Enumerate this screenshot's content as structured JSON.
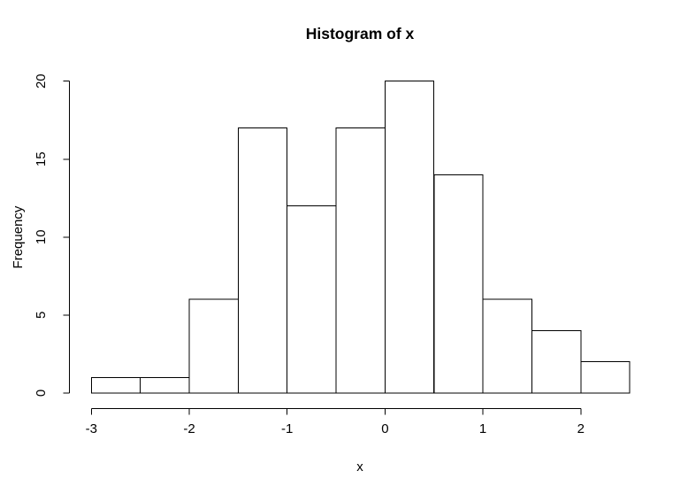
{
  "chart_data": {
    "type": "bar",
    "subtype": "histogram",
    "title": "Histogram of x",
    "xlabel": "x",
    "ylabel": "Frequency",
    "bin_breaks": [
      -3,
      -2.5,
      -2,
      -1.5,
      -1,
      -0.5,
      0,
      0.5,
      1,
      1.5,
      2,
      2.5
    ],
    "counts": [
      1,
      1,
      6,
      17,
      12,
      17,
      20,
      14,
      6,
      4,
      2
    ],
    "x_ticks": [
      "-3",
      "-2",
      "-1",
      "0",
      "1",
      "2"
    ],
    "x_tick_values": [
      -3,
      -2,
      -1,
      0,
      1,
      2
    ],
    "y_ticks": [
      "0",
      "5",
      "10",
      "15",
      "20"
    ],
    "y_tick_values": [
      0,
      5,
      10,
      15,
      20
    ],
    "xlim": [
      -3,
      2.5
    ],
    "ylim": [
      0,
      20
    ],
    "grid": false,
    "legend": null,
    "colors": {
      "background": "#ffffff",
      "bar_fill": "#ffffff",
      "bar_border": "#000000",
      "axis": "#000000",
      "text": "#000000"
    }
  }
}
